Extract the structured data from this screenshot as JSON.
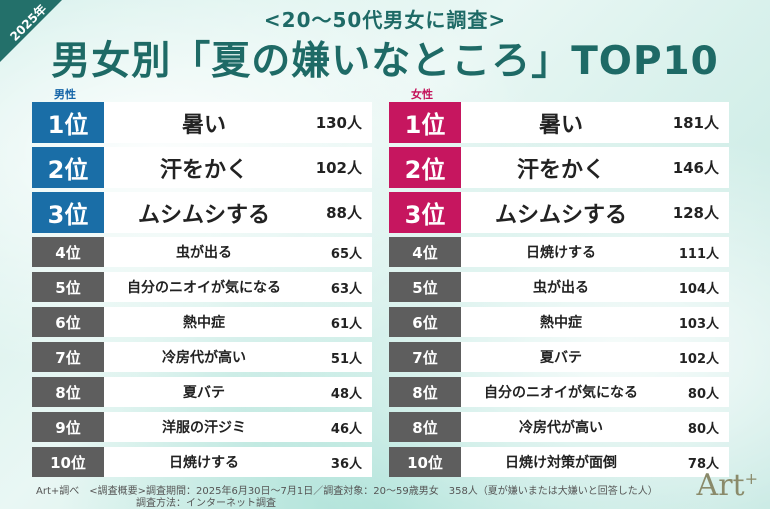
{
  "badge": "2025年",
  "subtitle": "<20〜50代男女に調査>",
  "title": "男女別「夏の嫌いなところ」TOP10",
  "male": {
    "label": "男性",
    "rows": [
      {
        "rank": "1位",
        "item": "暑い",
        "count": "130人"
      },
      {
        "rank": "2位",
        "item": "汗をかく",
        "count": "102人"
      },
      {
        "rank": "3位",
        "item": "ムシムシする",
        "count": "88人"
      },
      {
        "rank": "4位",
        "item": "虫が出る",
        "count": "65人"
      },
      {
        "rank": "5位",
        "item": "自分のニオイが気になる",
        "count": "63人"
      },
      {
        "rank": "6位",
        "item": "熱中症",
        "count": "61人"
      },
      {
        "rank": "7位",
        "item": "冷房代が高い",
        "count": "51人"
      },
      {
        "rank": "8位",
        "item": "夏バテ",
        "count": "48人"
      },
      {
        "rank": "9位",
        "item": "洋服の汗ジミ",
        "count": "46人"
      },
      {
        "rank": "10位",
        "item": "日焼けする",
        "count": "36人"
      }
    ]
  },
  "female": {
    "label": "女性",
    "rows": [
      {
        "rank": "1位",
        "item": "暑い",
        "count": "181人"
      },
      {
        "rank": "2位",
        "item": "汗をかく",
        "count": "146人"
      },
      {
        "rank": "3位",
        "item": "ムシムシする",
        "count": "128人"
      },
      {
        "rank": "4位",
        "item": "日焼けする",
        "count": "111人"
      },
      {
        "rank": "5位",
        "item": "虫が出る",
        "count": "104人"
      },
      {
        "rank": "6位",
        "item": "熱中症",
        "count": "103人"
      },
      {
        "rank": "7位",
        "item": "夏バテ",
        "count": "102人"
      },
      {
        "rank": "8位",
        "item": "自分のニオイが気になる",
        "count": "80人"
      },
      {
        "rank": "8位",
        "item": "冷房代が高い",
        "count": "80人"
      },
      {
        "rank": "10位",
        "item": "日焼け対策が面倒",
        "count": "78人"
      }
    ]
  },
  "footer": {
    "line1": "Art+調べ　<調査概要>調査期間：2025年6月30日〜7月1日／調査対象：20〜59歳男女　358人（夏が嫌いまたは大嫌いと回答した人）",
    "line2": "調査方法：インターネット調査"
  },
  "brand": "Art",
  "brand_mark": "+",
  "colors": {
    "teal": "#1e6a66",
    "male": "#1a6ea7",
    "female": "#c6165f",
    "gray": "#5e5e5e"
  }
}
